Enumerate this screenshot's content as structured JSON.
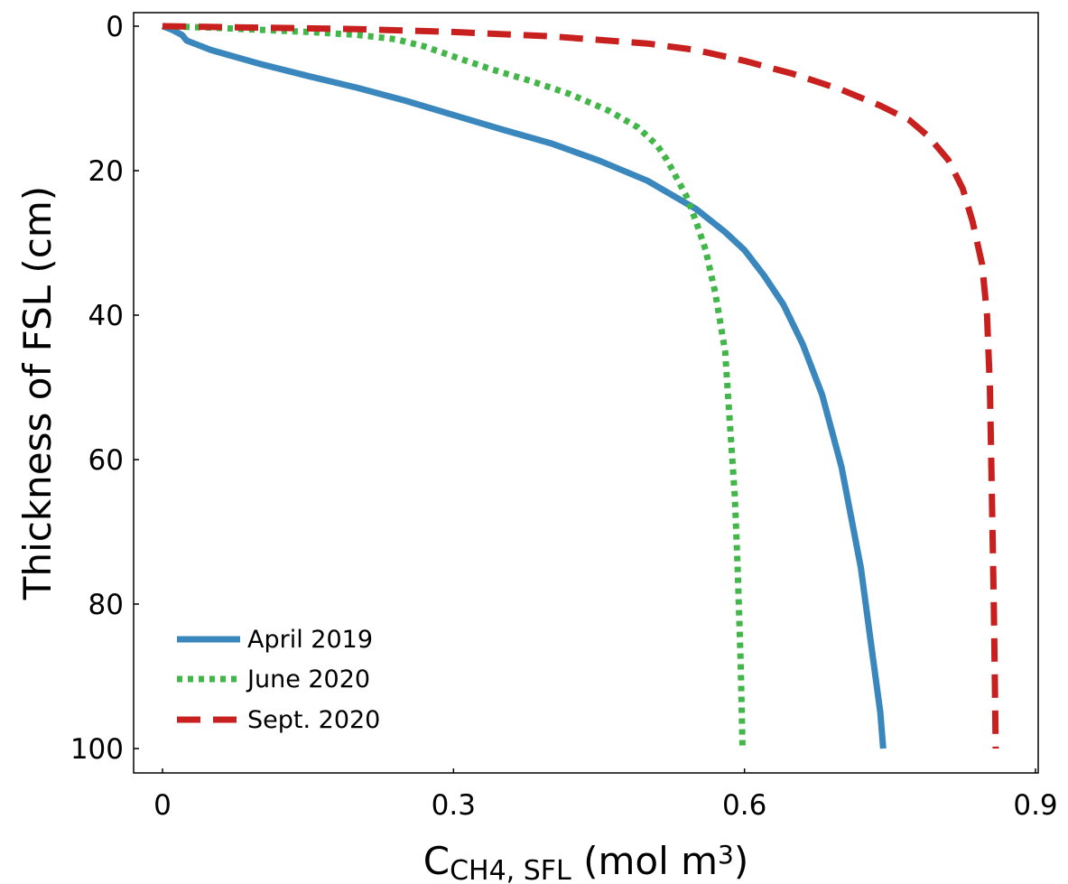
{
  "chart_data": {
    "type": "line",
    "xlabel": {
      "main": "C",
      "sub": "CH4, SFL",
      "unit_pre": " (mol m",
      "unit_sup": "3",
      "unit_post": ")"
    },
    "ylabel": "Thickness of FSL (cm)",
    "xlim": [
      0,
      0.9
    ],
    "ylim": [
      0,
      100
    ],
    "y_inverted": true,
    "xticks": [
      0,
      0.3,
      0.6,
      0.9
    ],
    "xtick_labels": [
      "0",
      "0.3",
      "0.6",
      "0.9"
    ],
    "yticks": [
      0,
      20,
      40,
      60,
      80,
      100
    ],
    "ytick_labels": [
      "0",
      "20",
      "40",
      "60",
      "80",
      "100"
    ],
    "grid": false,
    "legend_position": "bottom-left",
    "series": [
      {
        "name": "April 2019",
        "color": "#3a87bd",
        "style": "solid",
        "points": [
          [
            0,
            0
          ],
          [
            0.01,
            0.5
          ],
          [
            0.02,
            1.2
          ],
          [
            0.025,
            2
          ],
          [
            0.05,
            3.3
          ],
          [
            0.1,
            5.2
          ],
          [
            0.15,
            6.9
          ],
          [
            0.2,
            8.5
          ],
          [
            0.25,
            10.3
          ],
          [
            0.3,
            12.3
          ],
          [
            0.35,
            14.3
          ],
          [
            0.4,
            16.2
          ],
          [
            0.45,
            18.6
          ],
          [
            0.5,
            21.4
          ],
          [
            0.55,
            25.3
          ],
          [
            0.58,
            28.5
          ],
          [
            0.6,
            31
          ],
          [
            0.62,
            34.5
          ],
          [
            0.64,
            38.5
          ],
          [
            0.66,
            44
          ],
          [
            0.68,
            51
          ],
          [
            0.7,
            61
          ],
          [
            0.72,
            75
          ],
          [
            0.73,
            85
          ],
          [
            0.74,
            95
          ],
          [
            0.743,
            100
          ]
        ]
      },
      {
        "name": "June 2020",
        "color": "#43b649",
        "style": "dotted",
        "points": [
          [
            0,
            0
          ],
          [
            0.05,
            0.2
          ],
          [
            0.1,
            0.5
          ],
          [
            0.15,
            0.8
          ],
          [
            0.2,
            1.2
          ],
          [
            0.24,
            1.8
          ],
          [
            0.27,
            2.8
          ],
          [
            0.3,
            4.2
          ],
          [
            0.34,
            6
          ],
          [
            0.38,
            7.6
          ],
          [
            0.42,
            9.4
          ],
          [
            0.46,
            11.7
          ],
          [
            0.49,
            14
          ],
          [
            0.51,
            16.5
          ],
          [
            0.52,
            18.5
          ],
          [
            0.53,
            21
          ],
          [
            0.54,
            23.5
          ],
          [
            0.55,
            27
          ],
          [
            0.56,
            31
          ],
          [
            0.57,
            37
          ],
          [
            0.58,
            45
          ],
          [
            0.585,
            55
          ],
          [
            0.59,
            65
          ],
          [
            0.593,
            75
          ],
          [
            0.596,
            88
          ],
          [
            0.598,
            100
          ]
        ]
      },
      {
        "name": "Sept. 2020",
        "color": "#c8201e",
        "style": "dashed",
        "points": [
          [
            0,
            0
          ],
          [
            0.1,
            0.2
          ],
          [
            0.2,
            0.4
          ],
          [
            0.3,
            0.8
          ],
          [
            0.4,
            1.4
          ],
          [
            0.5,
            2.4
          ],
          [
            0.55,
            3.3
          ],
          [
            0.6,
            4.8
          ],
          [
            0.65,
            6.6
          ],
          [
            0.7,
            8.8
          ],
          [
            0.74,
            11
          ],
          [
            0.77,
            13
          ],
          [
            0.79,
            15.3
          ],
          [
            0.81,
            18.5
          ],
          [
            0.825,
            22.5
          ],
          [
            0.835,
            27
          ],
          [
            0.845,
            33
          ],
          [
            0.85,
            40
          ],
          [
            0.853,
            50
          ],
          [
            0.855,
            65
          ],
          [
            0.857,
            80
          ],
          [
            0.858,
            90
          ],
          [
            0.859,
            100
          ]
        ]
      }
    ]
  }
}
